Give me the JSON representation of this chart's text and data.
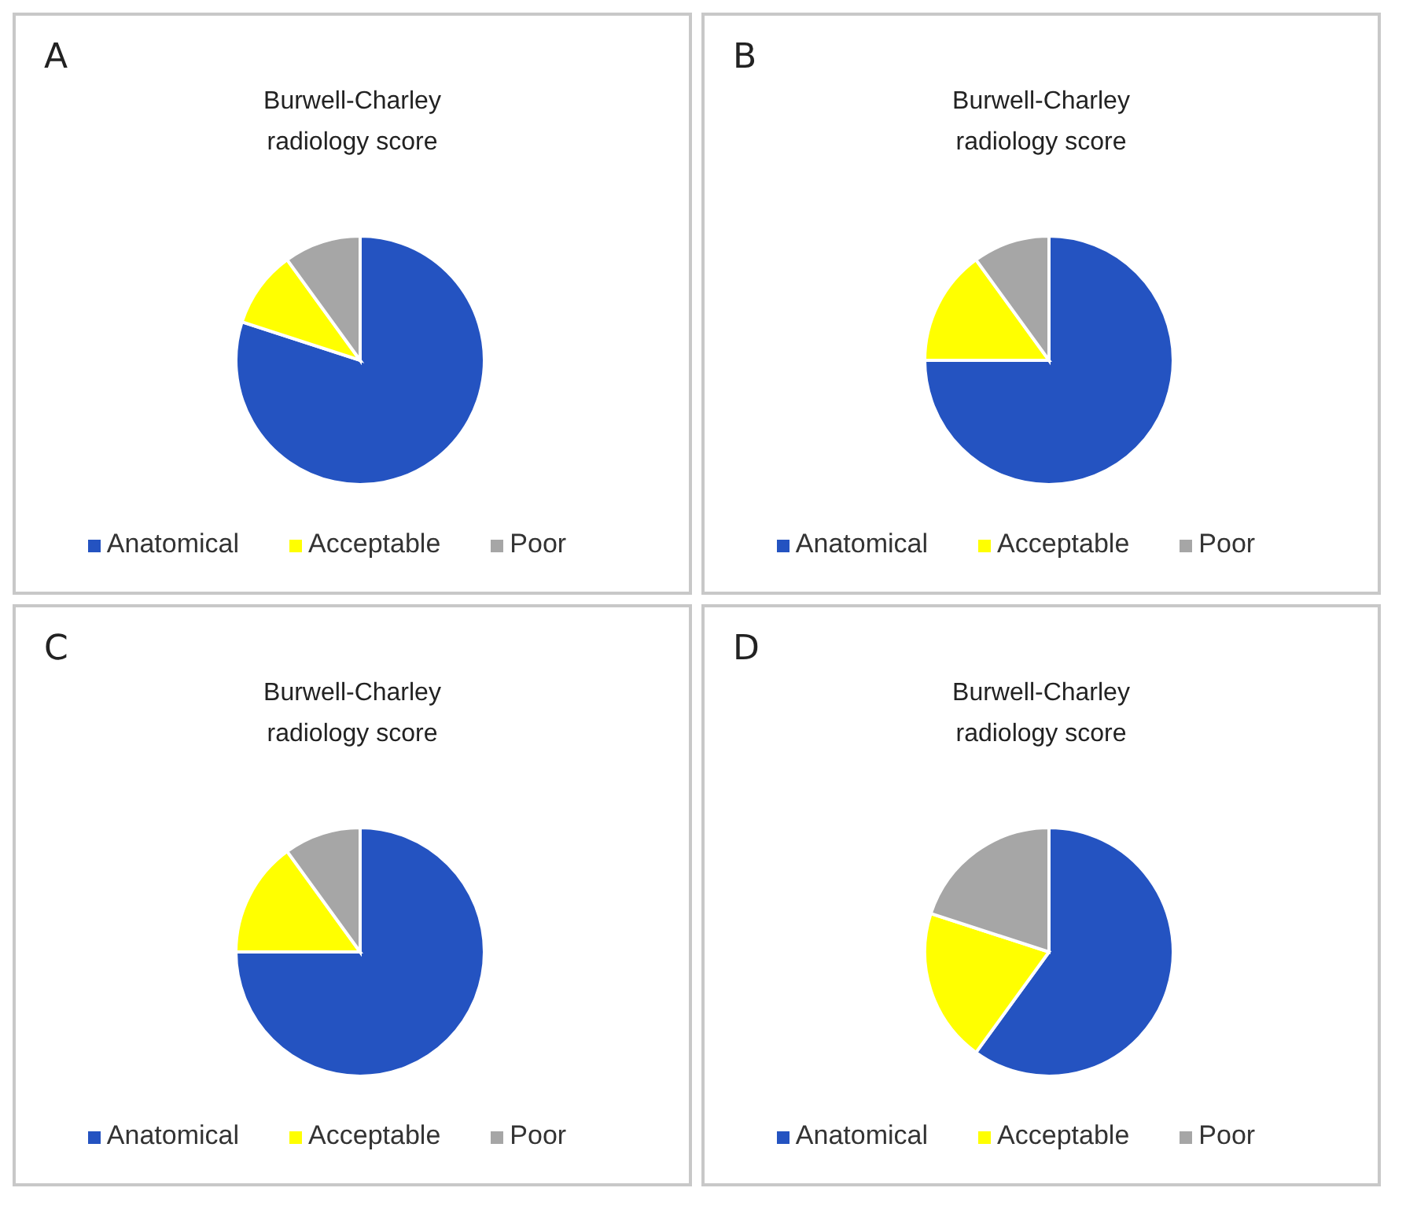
{
  "chart_data": [
    {
      "type": "pie",
      "title": "Burwell-Charley radiology score",
      "categories": [
        "Anatomical",
        "Acceptable",
        "Poor"
      ],
      "values": [
        80,
        10,
        10
      ],
      "colors": [
        "#2453c1",
        "#ffff00",
        "#a6a6a6"
      ],
      "legend": "bottom",
      "annotations": [
        "A"
      ]
    },
    {
      "type": "pie",
      "title": "Burwell-Charley radiology score",
      "categories": [
        "Anatomical",
        "Acceptable",
        "Poor"
      ],
      "values": [
        75,
        15,
        10
      ],
      "colors": [
        "#2453c1",
        "#ffff00",
        "#a6a6a6"
      ],
      "legend": "bottom",
      "annotations": [
        "B"
      ]
    },
    {
      "type": "pie",
      "title": "Burwell-Charley radiology score",
      "categories": [
        "Anatomical",
        "Acceptable",
        "Poor"
      ],
      "values": [
        75,
        15,
        10
      ],
      "colors": [
        "#2453c1",
        "#ffff00",
        "#a6a6a6"
      ],
      "legend": "bottom",
      "annotations": [
        "C"
      ]
    },
    {
      "type": "pie",
      "title": "Burwell-Charley radiology score",
      "categories": [
        "Anatomical",
        "Acceptable",
        "Poor"
      ],
      "values": [
        60,
        20,
        20
      ],
      "colors": [
        "#2453c1",
        "#ffff00",
        "#a6a6a6"
      ],
      "legend": "bottom",
      "annotations": [
        "D"
      ]
    }
  ]
}
